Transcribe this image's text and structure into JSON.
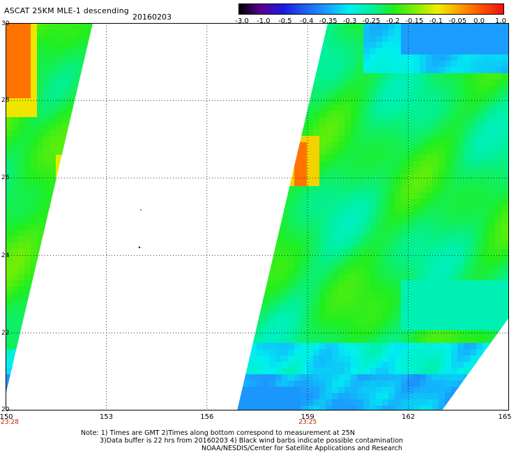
{
  "header": {
    "title": "ASCAT 25KM MLE-1 descending",
    "date": "20160203"
  },
  "colorbar": {
    "ticks": [
      "-3.0",
      "-1.0",
      "-0.5",
      "-0.4",
      "-0.35",
      "-0.3",
      "-0.25",
      "-0.2",
      "-0.15",
      "-0.1",
      "-0.05",
      "0.0",
      "1.0"
    ],
    "colors": [
      "#000000",
      "#5a0090",
      "#1a1ae0",
      "#2060f0",
      "#1aa0ff",
      "#00f0f0",
      "#00f0a0",
      "#20ee20",
      "#80ee00",
      "#eeee00",
      "#ffa000",
      "#ff5000",
      "#ee1010"
    ]
  },
  "map": {
    "lon_range": [
      150,
      165
    ],
    "lat_range": [
      20,
      30
    ],
    "lon_ticks": [
      "150",
      "153",
      "156",
      "159",
      "162",
      "165"
    ],
    "lat_ticks": [
      "30",
      "28",
      "26",
      "24",
      "22",
      "20"
    ],
    "swath_times": [
      {
        "lon": 150,
        "label": "23:28"
      },
      {
        "lon": 159,
        "label": "23:25"
      }
    ],
    "swaths": [
      {
        "name": "west-swath",
        "corners": [
          [
            150,
            30
          ],
          [
            152.6,
            30
          ],
          [
            150,
            20.4
          ]
        ]
      },
      {
        "name": "east-swath",
        "corners": [
          [
            159.6,
            30
          ],
          [
            165,
            30
          ],
          [
            165,
            22.4
          ],
          [
            163,
            20
          ],
          [
            156.9,
            20
          ]
        ]
      }
    ],
    "grid": true,
    "grid_style": "dotted"
  },
  "footer": {
    "line1": "Note: 1) Times are GMT 2)Times along bottom correspond to measurement at 25N",
    "line2": "3)Data buffer is 22 hrs from 20160203 4) Black wind barbs indicate possible contamination",
    "line3": "NOAA/NESDIS/Center for Satellite Applications and Research"
  }
}
